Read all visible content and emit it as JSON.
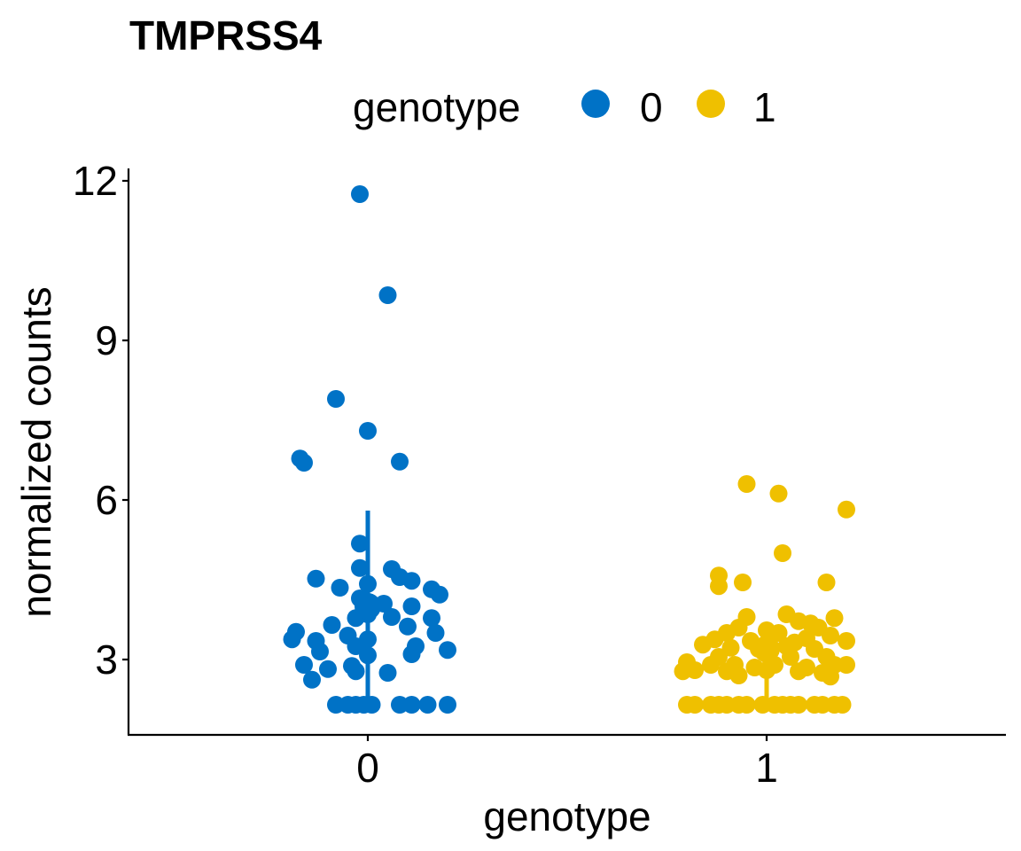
{
  "chart_data": {
    "type": "scatter",
    "title": "TMPRSS4",
    "xlabel": "genotype",
    "ylabel": "normalized counts",
    "legend": {
      "title": "genotype",
      "placement": "top",
      "entries": [
        {
          "label": "0",
          "color": "#0072C6"
        },
        {
          "label": "1",
          "color": "#EFC000"
        }
      ]
    },
    "categories": [
      "0",
      "1"
    ],
    "ylim": [
      1.4,
      12.2
    ],
    "yticks": [
      3,
      6,
      9,
      12
    ],
    "ytick_labels": [
      "3",
      "6",
      "9",
      "12"
    ],
    "grid": false,
    "summary": [
      {
        "category": "0",
        "median": 4.0,
        "lower": 2.15,
        "upper": 5.8,
        "color": "#0072C6"
      },
      {
        "category": "1",
        "median": 3.2,
        "lower": 2.15,
        "upper": 3.7,
        "color": "#EFC000"
      }
    ],
    "series": [
      {
        "category": "0",
        "color": "#0072C6",
        "points": [
          [
            -0.02,
            11.75
          ],
          [
            0.05,
            9.85
          ],
          [
            -0.08,
            7.9
          ],
          [
            0.0,
            7.3
          ],
          [
            -0.17,
            6.78
          ],
          [
            -0.16,
            6.7
          ],
          [
            0.08,
            6.72
          ],
          [
            -0.02,
            5.18
          ],
          [
            -0.02,
            4.72
          ],
          [
            0.06,
            4.7
          ],
          [
            0.08,
            4.55
          ],
          [
            0.11,
            4.48
          ],
          [
            0.0,
            4.42
          ],
          [
            -0.13,
            4.52
          ],
          [
            -0.07,
            4.35
          ],
          [
            0.16,
            4.32
          ],
          [
            0.18,
            4.22
          ],
          [
            -0.02,
            4.15
          ],
          [
            0.04,
            4.05
          ],
          [
            0.11,
            4.0
          ],
          [
            -0.01,
            3.95
          ],
          [
            0.0,
            3.85
          ],
          [
            0.06,
            3.8
          ],
          [
            -0.03,
            3.78
          ],
          [
            0.16,
            3.78
          ],
          [
            -0.09,
            3.65
          ],
          [
            0.1,
            3.62
          ],
          [
            0.17,
            3.5
          ],
          [
            -0.18,
            3.52
          ],
          [
            -0.05,
            3.45
          ],
          [
            -0.19,
            3.38
          ],
          [
            -0.13,
            3.35
          ],
          [
            0.0,
            3.38
          ],
          [
            -0.03,
            3.25
          ],
          [
            0.12,
            3.25
          ],
          [
            -0.12,
            3.15
          ],
          [
            0.11,
            3.1
          ],
          [
            0.0,
            3.08
          ],
          [
            0.2,
            3.18
          ],
          [
            -0.16,
            2.9
          ],
          [
            -0.04,
            2.88
          ],
          [
            -0.03,
            2.78
          ],
          [
            -0.1,
            2.82
          ],
          [
            0.05,
            2.75
          ],
          [
            -0.14,
            2.62
          ],
          [
            -0.08,
            2.15
          ],
          [
            -0.05,
            2.15
          ],
          [
            -0.03,
            2.15
          ],
          [
            -0.01,
            2.15
          ],
          [
            0.01,
            2.15
          ],
          [
            0.08,
            2.15
          ],
          [
            0.11,
            2.15
          ],
          [
            0.15,
            2.15
          ],
          [
            0.2,
            2.15
          ]
        ]
      },
      {
        "category": "1",
        "color": "#EFC000",
        "points": [
          [
            -0.05,
            6.3
          ],
          [
            0.03,
            6.12
          ],
          [
            0.2,
            5.82
          ],
          [
            0.04,
            5.0
          ],
          [
            -0.12,
            4.58
          ],
          [
            0.15,
            4.45
          ],
          [
            -0.12,
            4.38
          ],
          [
            -0.06,
            4.45
          ],
          [
            0.05,
            3.85
          ],
          [
            -0.05,
            3.8
          ],
          [
            0.08,
            3.72
          ],
          [
            0.11,
            3.68
          ],
          [
            0.17,
            3.78
          ],
          [
            -0.07,
            3.6
          ],
          [
            0.0,
            3.55
          ],
          [
            0.13,
            3.6
          ],
          [
            -0.1,
            3.5
          ],
          [
            0.03,
            3.5
          ],
          [
            0.16,
            3.45
          ],
          [
            -0.13,
            3.38
          ],
          [
            -0.04,
            3.35
          ],
          [
            0.07,
            3.32
          ],
          [
            0.1,
            3.4
          ],
          [
            0.2,
            3.35
          ],
          [
            -0.16,
            3.28
          ],
          [
            -0.09,
            3.22
          ],
          [
            -0.02,
            3.2
          ],
          [
            0.05,
            3.25
          ],
          [
            0.12,
            3.2
          ],
          [
            -0.12,
            3.05
          ],
          [
            0.0,
            3.1
          ],
          [
            0.06,
            3.05
          ],
          [
            0.15,
            3.05
          ],
          [
            -0.2,
            2.95
          ],
          [
            -0.14,
            2.9
          ],
          [
            -0.08,
            2.9
          ],
          [
            -0.03,
            2.85
          ],
          [
            0.02,
            2.9
          ],
          [
            0.1,
            2.85
          ],
          [
            0.17,
            2.9
          ],
          [
            0.2,
            2.9
          ],
          [
            -0.18,
            2.8
          ],
          [
            -0.1,
            2.78
          ],
          [
            0.0,
            2.8
          ],
          [
            0.08,
            2.78
          ],
          [
            0.14,
            2.75
          ],
          [
            -0.07,
            2.7
          ],
          [
            0.16,
            2.68
          ],
          [
            -0.21,
            2.78
          ],
          [
            -0.2,
            2.15
          ],
          [
            -0.18,
            2.15
          ],
          [
            -0.14,
            2.15
          ],
          [
            -0.12,
            2.15
          ],
          [
            -0.1,
            2.15
          ],
          [
            -0.07,
            2.15
          ],
          [
            -0.05,
            2.15
          ],
          [
            -0.01,
            2.15
          ],
          [
            0.02,
            2.15
          ],
          [
            0.04,
            2.15
          ],
          [
            0.06,
            2.15
          ],
          [
            0.08,
            2.15
          ],
          [
            0.12,
            2.15
          ],
          [
            0.14,
            2.15
          ],
          [
            0.17,
            2.15
          ],
          [
            0.19,
            2.15
          ]
        ]
      }
    ]
  }
}
